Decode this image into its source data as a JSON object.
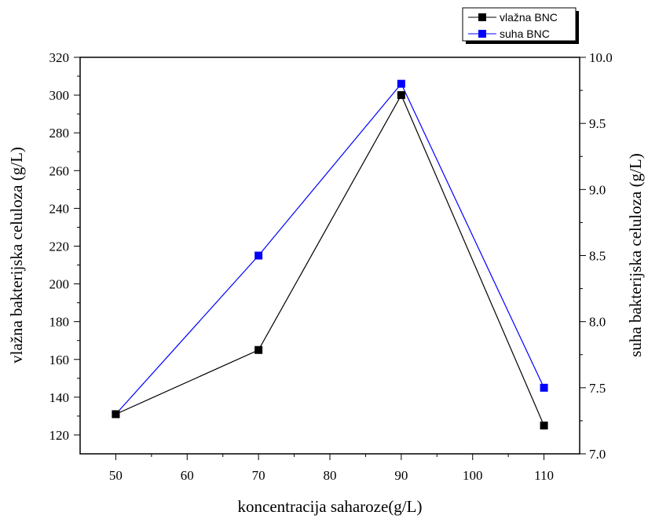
{
  "chart_data": {
    "type": "line",
    "xlabel": "koncentracija saharoze(g/L)",
    "ylabel_left": "vlažna bakterijska celuloza (g/L)",
    "ylabel_right": "suha bakterijska celuloza (g/L)",
    "x": [
      50,
      70,
      90,
      110
    ],
    "xlim": [
      45,
      115
    ],
    "xticks": [
      50,
      60,
      70,
      80,
      90,
      100,
      110
    ],
    "ylim_left": [
      110,
      320
    ],
    "yticks_left": [
      120,
      140,
      160,
      180,
      200,
      220,
      240,
      260,
      280,
      300,
      320
    ],
    "ylim_right": [
      7.0,
      10.0
    ],
    "yticks_right": [
      "7.0",
      "7.5",
      "8.0",
      "8.5",
      "9.0",
      "9.5",
      "10.0"
    ],
    "grid": false,
    "legend_position": "top-right",
    "series": [
      {
        "name": "vlažna BNC",
        "axis": "left",
        "color": "#000000",
        "values": [
          131,
          165,
          300,
          125
        ]
      },
      {
        "name": "suha BNC",
        "axis": "right",
        "color": "#0000ff",
        "values": [
          7.3,
          8.5,
          9.8,
          7.5
        ]
      }
    ]
  }
}
